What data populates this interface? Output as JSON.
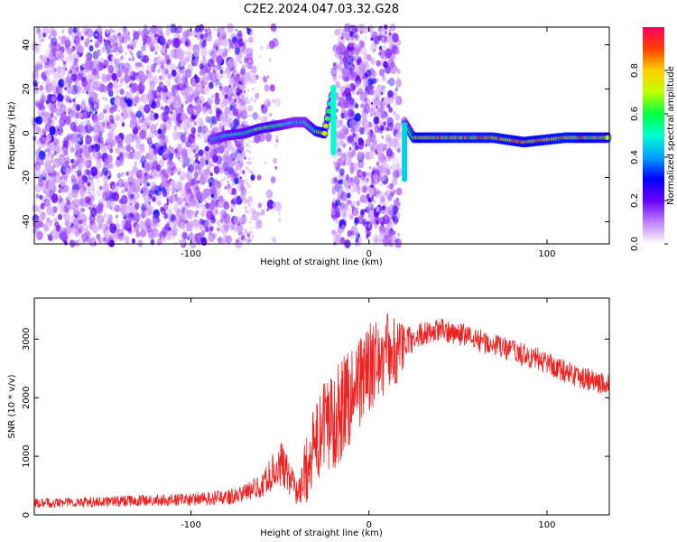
{
  "title": "C2E2.2024.047.03.32.G28",
  "chart_data": [
    {
      "type": "heatmap",
      "xlabel": "Height of straight line (km)",
      "ylabel": "Frequency (Hz)",
      "xlim": [
        -188,
        135
      ],
      "ylim": [
        -50,
        48
      ],
      "xticks": [
        -100,
        0,
        100
      ],
      "yticks": [
        -40,
        -20,
        0,
        20,
        40
      ],
      "colorbar": {
        "label": "Normalized spectral amplitude",
        "range": [
          0,
          1
        ],
        "ticks": [
          0.0,
          0.2,
          0.4,
          0.6,
          0.8
        ],
        "colors": [
          "#ffffff",
          "#c080ff",
          "#6a00ff",
          "#0000ff",
          "#00a0ff",
          "#00ffd0",
          "#00ff40",
          "#c0ff00",
          "#ffd000",
          "#ff4000",
          "#ff0060"
        ]
      },
      "noise_regions": [
        {
          "x": [
            -188,
            -70
          ],
          "density": "high"
        },
        {
          "x": [
            -75,
            -50
          ],
          "density": "low"
        },
        {
          "x": [
            -20,
            17
          ],
          "density": "high"
        }
      ],
      "signal_track": [
        {
          "x": -89,
          "y": -3,
          "amp": 0.45
        },
        {
          "x": -80,
          "y": -1,
          "amp": 0.55
        },
        {
          "x": -70,
          "y": 0,
          "amp": 0.6
        },
        {
          "x": -62,
          "y": 2,
          "amp": 0.7
        },
        {
          "x": -55,
          "y": 3,
          "amp": 0.65
        },
        {
          "x": -48,
          "y": 4,
          "amp": 0.55
        },
        {
          "x": -42,
          "y": 5,
          "amp": 0.5
        },
        {
          "x": -36,
          "y": 5,
          "amp": 0.5
        },
        {
          "x": -30,
          "y": 1,
          "amp": 0.7
        },
        {
          "x": -25,
          "y": 0,
          "amp": 0.85
        },
        {
          "x": -20,
          "y": 20,
          "amp": 0.5
        },
        {
          "x": 20,
          "y": 5,
          "amp": 0.45
        },
        {
          "x": 25,
          "y": -2,
          "amp": 0.85
        },
        {
          "x": 50,
          "y": -2,
          "amp": 0.9
        },
        {
          "x": 70,
          "y": -2,
          "amp": 0.9
        },
        {
          "x": 87,
          "y": -4,
          "amp": 0.85
        },
        {
          "x": 110,
          "y": -2,
          "amp": 0.9
        },
        {
          "x": 135,
          "y": -2,
          "amp": 0.8
        }
      ]
    },
    {
      "type": "line",
      "xlabel": "Height of straight line (km)",
      "ylabel": "SNR (10 * v/v)",
      "xlim": [
        -188,
        135
      ],
      "ylim": [
        0,
        3700
      ],
      "xticks": [
        -100,
        0,
        100
      ],
      "yticks": [
        0,
        1000,
        2000,
        3000
      ],
      "series": [
        {
          "color": "#ee2222",
          "x": [
            -188,
            -160,
            -130,
            -100,
            -80,
            -70,
            -60,
            -55,
            -50,
            -45,
            -40,
            -35,
            -30,
            -25,
            -20,
            -15,
            -10,
            -5,
            0,
            5,
            10,
            15,
            20,
            25,
            30,
            40,
            50,
            60,
            70,
            80,
            90,
            100,
            110,
            120,
            135
          ],
          "values": [
            200,
            220,
            240,
            260,
            300,
            380,
            500,
            700,
            900,
            650,
            350,
            800,
            1200,
            1500,
            1650,
            1850,
            2100,
            2300,
            2500,
            2600,
            2800,
            2750,
            2900,
            3000,
            3100,
            3150,
            3100,
            3000,
            2900,
            2800,
            2700,
            2600,
            2450,
            2350,
            2200
          ],
          "noise": [
            80,
            90,
            100,
            110,
            130,
            150,
            200,
            300,
            400,
            300,
            200,
            600,
            700,
            800,
            900,
            900,
            900,
            800,
            800,
            700,
            700,
            600,
            400,
            200,
            200,
            200,
            200,
            200,
            200,
            200,
            200,
            200,
            200,
            200,
            200
          ]
        }
      ]
    }
  ]
}
